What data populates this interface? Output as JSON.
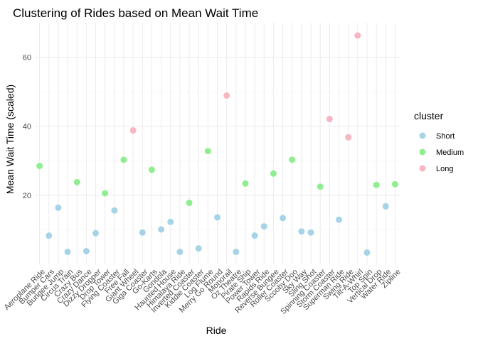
{
  "chart_data": {
    "type": "scatter",
    "title": "Clustering of Rides based on Mean Wait Time",
    "xlabel": "Ride",
    "ylabel": "Mean Wait Time (scaled)",
    "ylim": [
      0,
      70
    ],
    "yticks": [
      20,
      40,
      60
    ],
    "grid": true,
    "legend": {
      "title": "cluster",
      "position": "right"
    },
    "colors": {
      "Short": "#a6d4e6",
      "Medium": "#90ee90",
      "Long": "#f7b6c2"
    },
    "categories": [
      "Aeroplane Ride",
      "Bumper Cars",
      "Bungee Jump",
      "Circus Train",
      "Crazy Bus",
      "Crazy Dance",
      "Dizzy Dropper",
      "Drop Tower",
      "Flying Coaster",
      "Free Fall",
      "Giant Wheel",
      "Giga Coaster",
      "Go-Karts",
      "Gondola",
      "Haunted House",
      "Himalaya Ride",
      "Inverted Coaster",
      "Kiddie Coaster",
      "Log Flume",
      "Merry Go Round",
      "Monorail",
      "Oz Theatre",
      "Pirate Ship",
      "Power Tower",
      "Rapids Ride",
      "Reverse Bungee",
      "Roller Coaster",
      "Scooby Doo",
      "Sky Way",
      "Sling Shot",
      "Spinning Coaster",
      "Storm Coaster",
      "Superman Ride",
      "Swing Ride",
      "Tilt-A-Whirl",
      "Top Spin",
      "Vertical Drop",
      "Water Ride",
      "Zipline"
    ],
    "points": [
      {
        "x": "Aeroplane Ride",
        "y": 28.5,
        "cluster": "Medium"
      },
      {
        "x": "Bumper Cars",
        "y": 8.3,
        "cluster": "Short"
      },
      {
        "x": "Bungee Jump",
        "y": 16.4,
        "cluster": "Short"
      },
      {
        "x": "Circus Train",
        "y": 3.6,
        "cluster": "Short"
      },
      {
        "x": "Crazy Bus",
        "y": 23.8,
        "cluster": "Medium"
      },
      {
        "x": "Crazy Dance",
        "y": 3.8,
        "cluster": "Short"
      },
      {
        "x": "Dizzy Dropper",
        "y": 9.0,
        "cluster": "Short"
      },
      {
        "x": "Drop Tower",
        "y": 20.6,
        "cluster": "Medium"
      },
      {
        "x": "Flying Coaster",
        "y": 15.6,
        "cluster": "Short"
      },
      {
        "x": "Free Fall",
        "y": 30.3,
        "cluster": "Medium"
      },
      {
        "x": "Giant Wheel",
        "y": 38.8,
        "cluster": "Long"
      },
      {
        "x": "Giga Coaster",
        "y": 9.2,
        "cluster": "Short"
      },
      {
        "x": "Go-Karts",
        "y": 27.4,
        "cluster": "Medium"
      },
      {
        "x": "Gondola",
        "y": 10.1,
        "cluster": "Short"
      },
      {
        "x": "Haunted House",
        "y": 12.3,
        "cluster": "Short"
      },
      {
        "x": "Himalaya Ride",
        "y": 3.6,
        "cluster": "Short"
      },
      {
        "x": "Inverted Coaster",
        "y": 17.8,
        "cluster": "Medium"
      },
      {
        "x": "Kiddie Coaster",
        "y": 4.6,
        "cluster": "Short"
      },
      {
        "x": "Log Flume",
        "y": 32.8,
        "cluster": "Medium"
      },
      {
        "x": "Merry Go Round",
        "y": 13.6,
        "cluster": "Short"
      },
      {
        "x": "Monorail",
        "y": 48.9,
        "cluster": "Long"
      },
      {
        "x": "Oz Theatre",
        "y": 3.6,
        "cluster": "Short"
      },
      {
        "x": "Pirate Ship",
        "y": 23.4,
        "cluster": "Medium"
      },
      {
        "x": "Power Tower",
        "y": 8.3,
        "cluster": "Short"
      },
      {
        "x": "Rapids Ride",
        "y": 11.0,
        "cluster": "Short"
      },
      {
        "x": "Reverse Bungee",
        "y": 26.3,
        "cluster": "Medium"
      },
      {
        "x": "Roller Coaster",
        "y": 13.4,
        "cluster": "Short"
      },
      {
        "x": "Scooby Doo",
        "y": 30.3,
        "cluster": "Medium"
      },
      {
        "x": "Sky Way",
        "y": 9.5,
        "cluster": "Short"
      },
      {
        "x": "Sling Shot",
        "y": 9.2,
        "cluster": "Short"
      },
      {
        "x": "Spinning Coaster",
        "y": 22.5,
        "cluster": "Medium"
      },
      {
        "x": "Storm Coaster",
        "y": 42.1,
        "cluster": "Long"
      },
      {
        "x": "Superman Ride",
        "y": 12.9,
        "cluster": "Short"
      },
      {
        "x": "Swing Ride",
        "y": 36.8,
        "cluster": "Long"
      },
      {
        "x": "Tilt-A-Whirl",
        "y": 66.3,
        "cluster": "Long"
      },
      {
        "x": "Top Spin",
        "y": 3.4,
        "cluster": "Short"
      },
      {
        "x": "Vertical Drop",
        "y": 23.0,
        "cluster": "Medium"
      },
      {
        "x": "Water Ride",
        "y": 16.8,
        "cluster": "Short"
      },
      {
        "x": "Zipline",
        "y": 23.2,
        "cluster": "Medium"
      }
    ]
  }
}
